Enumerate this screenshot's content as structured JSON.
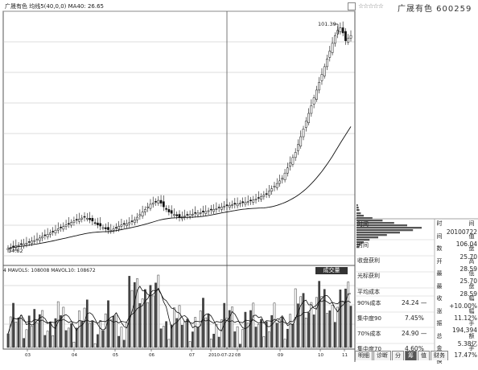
{
  "header": {
    "title": "广晟有色  均线5(40,0,0)  MA40: 26.65",
    "stock_name": "广晟有色  600259",
    "stars": "☆☆☆☆☆"
  },
  "chart_data": {
    "type": "candlestick",
    "price_labels": {
      "high": "101.39",
      "low": "14.82"
    },
    "volume_label": "4 MAVOL5: 108008 MAVOL10: 108672",
    "volume_button": "成交量",
    "x_ticks": [
      "03",
      "04",
      "05",
      "06",
      "07",
      "2010-07-22",
      "08",
      "09",
      "10",
      "11"
    ],
    "marker_date": "2010-07-22",
    "closes": [
      15,
      15.3,
      15.8,
      16,
      16.2,
      16.5,
      16.7,
      17,
      17.5,
      17.8,
      18,
      18.6,
      19,
      19.6,
      20,
      20.4,
      21,
      21.5,
      22,
      22.6,
      23,
      23.4,
      24,
      24.5,
      25,
      25.6,
      26,
      26.3,
      26.7,
      27,
      26.6,
      26,
      25.5,
      24.8,
      24,
      23.6,
      23,
      22.5,
      22.2,
      22,
      22.5,
      23,
      23.5,
      24,
      24.3,
      24.5,
      25,
      25.5,
      26,
      27,
      28,
      29,
      30,
      31,
      32,
      32.5,
      33,
      33.5,
      32.4,
      31,
      30,
      29,
      28.5,
      28,
      27.5,
      27,
      27.2,
      27.5,
      27.8,
      28,
      28.2,
      28.5,
      28.6,
      28.8,
      29,
      29.2,
      29.5,
      29.8,
      30,
      30.3,
      30.6,
      30.9,
      31.2,
      31.4,
      31.6,
      31.8,
      32,
      32.2,
      32.4,
      32.6,
      32.8,
      33,
      33.3,
      33.6,
      34,
      34.5,
      35,
      35.5,
      36,
      37,
      38,
      39,
      40,
      41,
      42,
      44,
      46,
      48,
      50,
      52,
      55,
      58,
      61,
      64,
      67,
      70,
      73,
      76,
      79,
      82,
      85,
      88,
      91,
      94,
      97,
      99,
      100,
      98,
      95,
      96,
      97
    ]
  },
  "panel": {
    "time_header": "时间",
    "rows": [
      {
        "label": "时间",
        "value": ""
      },
      {
        "label": "收盘获利",
        "value": ""
      },
      {
        "label": "光标获利",
        "value": ""
      },
      {
        "label": "平均成本",
        "value": ""
      }
    ],
    "cost": [
      {
        "label": "90%成本",
        "value": "24.24 —"
      },
      {
        "label": "集中度90",
        "value": "7.45%"
      },
      {
        "label": "70%成本",
        "value": "24.90 —"
      },
      {
        "label": "集中度70",
        "value": "4.60%"
      }
    ],
    "vert_labels": "时间数开最最收涨振总金换",
    "vert_right": "间值盘高低盘幅幅手额手",
    "right_values": [
      "20100722",
      "106.04",
      "25.70",
      "28.59",
      "25.70",
      "28.59",
      "+10.00%",
      "11.12%",
      "194,394",
      "5.38亿",
      "17.47%"
    ]
  },
  "tabs": [
    "明细",
    "诊断",
    "分",
    "筹",
    "值",
    "财务"
  ],
  "active_tab": "筹"
}
